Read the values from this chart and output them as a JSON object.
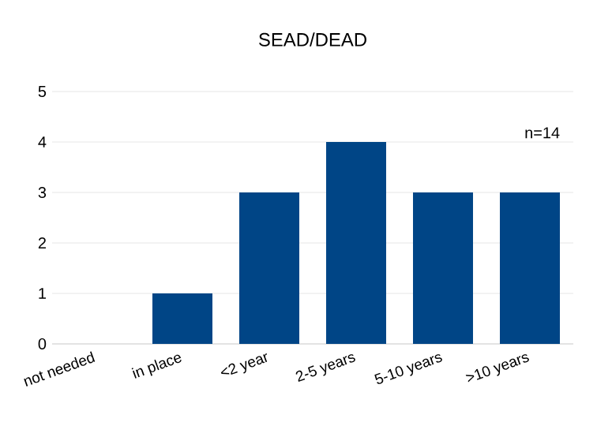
{
  "chart_data": {
    "type": "bar",
    "title": "SEAD/DEAD",
    "categories": [
      "not needed",
      "in place",
      "<2 year",
      "2-5 years",
      "5-10 years",
      ">10 years"
    ],
    "values": [
      0,
      1,
      3,
      4,
      3,
      3
    ],
    "color": "#004586",
    "ylim": [
      0,
      5
    ],
    "yticks": [
      0,
      1,
      2,
      3,
      4,
      5
    ],
    "grid": "y",
    "annotations": [
      "n=14"
    ]
  }
}
